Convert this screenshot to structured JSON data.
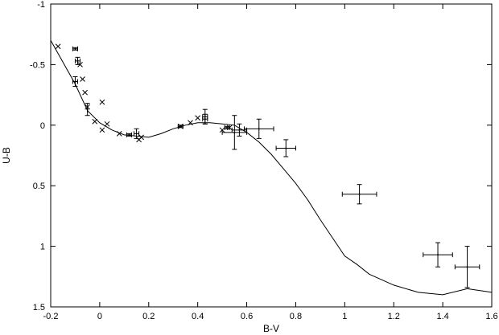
{
  "chart_data": {
    "type": "scatter",
    "title": "",
    "xlabel": "B-V",
    "ylabel": "U-B",
    "xlim": [
      -0.2,
      1.6
    ],
    "ylim": [
      1.5,
      -1
    ],
    "y_inverted": true,
    "grid": false,
    "legend": "none",
    "x_ticks": [
      "-0.2",
      "0",
      "0.2",
      "0.4",
      "0.6",
      "0.8",
      "1",
      "1.2",
      "1.4",
      "1.6"
    ],
    "y_ticks": [
      "-1",
      "-0.5",
      "0",
      "0.5",
      "1",
      "1.5"
    ],
    "series": [
      {
        "kind": "line",
        "points": [
          [
            -0.2,
            -0.7
          ],
          [
            -0.15,
            -0.52
          ],
          [
            -0.1,
            -0.34
          ],
          [
            -0.05,
            -0.12
          ],
          [
            0.0,
            -0.02
          ],
          [
            0.05,
            0.04
          ],
          [
            0.1,
            0.08
          ],
          [
            0.15,
            0.09
          ],
          [
            0.2,
            0.1
          ],
          [
            0.25,
            0.07
          ],
          [
            0.3,
            0.03
          ],
          [
            0.35,
            0.0
          ],
          [
            0.4,
            -0.02
          ],
          [
            0.45,
            -0.02
          ],
          [
            0.5,
            -0.01
          ],
          [
            0.55,
            0.0
          ],
          [
            0.6,
            0.06
          ],
          [
            0.65,
            0.14
          ],
          [
            0.7,
            0.24
          ],
          [
            0.75,
            0.36
          ],
          [
            0.8,
            0.48
          ],
          [
            0.85,
            0.62
          ],
          [
            0.9,
            0.78
          ],
          [
            0.95,
            0.93
          ],
          [
            1.0,
            1.08
          ],
          [
            1.05,
            1.15
          ],
          [
            1.1,
            1.23
          ],
          [
            1.2,
            1.32
          ],
          [
            1.3,
            1.38
          ],
          [
            1.4,
            1.4
          ],
          [
            1.5,
            1.35
          ],
          [
            1.6,
            1.38
          ]
        ]
      },
      {
        "kind": "cross-markers",
        "points": [
          [
            -0.17,
            -0.65
          ],
          [
            -0.08,
            -0.5
          ],
          [
            -0.07,
            -0.38
          ],
          [
            -0.06,
            -0.27
          ],
          [
            -0.05,
            -0.15
          ],
          [
            -0.02,
            -0.03
          ],
          [
            0.01,
            -0.19
          ],
          [
            0.01,
            0.04
          ],
          [
            0.03,
            -0.01
          ],
          [
            0.08,
            0.07
          ],
          [
            0.16,
            0.12
          ],
          [
            0.17,
            0.1
          ],
          [
            0.33,
            0.01
          ],
          [
            0.37,
            -0.02
          ],
          [
            0.4,
            -0.06
          ],
          [
            0.5,
            0.04
          ],
          [
            0.53,
            0.02
          ]
        ]
      },
      {
        "kind": "error-points",
        "points": [
          {
            "x": -0.1,
            "y": -0.63,
            "xerr": 0.01,
            "yerr": 0.01
          },
          {
            "x": -0.09,
            "y": -0.53,
            "xerr": 0.01,
            "yerr": 0.03
          },
          {
            "x": -0.1,
            "y": -0.36,
            "xerr": 0.01,
            "yerr": 0.04
          },
          {
            "x": -0.05,
            "y": -0.13,
            "xerr": 0.0,
            "yerr": 0.05
          },
          {
            "x": 0.12,
            "y": 0.08,
            "xerr": 0.01,
            "yerr": 0.01
          },
          {
            "x": 0.15,
            "y": 0.07,
            "xerr": 0.01,
            "yerr": 0.04
          },
          {
            "x": 0.33,
            "y": 0.01,
            "xerr": 0.01,
            "yerr": 0.01
          },
          {
            "x": 0.43,
            "y": -0.07,
            "xerr": 0.01,
            "yerr": 0.06
          },
          {
            "x": 0.43,
            "y": -0.05,
            "xerr": 0.01,
            "yerr": 0.04
          },
          {
            "x": 0.52,
            "y": 0.02,
            "xerr": 0.01,
            "yerr": 0.01
          },
          {
            "x": 0.55,
            "y": 0.06,
            "xerr": 0.05,
            "yerr": 0.14
          },
          {
            "x": 0.57,
            "y": 0.04,
            "xerr": 0.03,
            "yerr": 0.05
          },
          {
            "x": 0.65,
            "y": 0.03,
            "xerr": 0.06,
            "yerr": 0.08
          },
          {
            "x": 0.76,
            "y": 0.19,
            "xerr": 0.04,
            "yerr": 0.07
          },
          {
            "x": 1.06,
            "y": 0.57,
            "xerr": 0.07,
            "yerr": 0.08
          },
          {
            "x": 1.38,
            "y": 1.07,
            "xerr": 0.06,
            "yerr": 0.1
          },
          {
            "x": 1.5,
            "y": 1.17,
            "xerr": 0.05,
            "yerr": 0.17
          }
        ]
      }
    ]
  }
}
